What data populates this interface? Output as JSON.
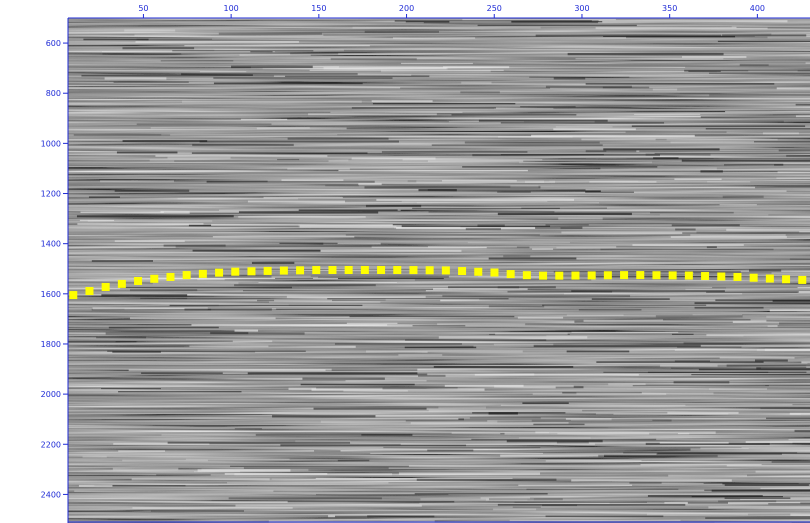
{
  "viewer": {
    "horizon_color": "#ffff00",
    "axis_color": "#1f2bd6",
    "background_color": "#7a7a7a"
  },
  "axes": {
    "x": {
      "ticks": [
        50,
        100,
        150,
        200,
        250,
        300,
        350,
        400
      ],
      "range": [
        7,
        430
      ]
    },
    "y": {
      "ticks": [
        600,
        800,
        1000,
        1200,
        1400,
        1600,
        1800,
        2000,
        2200,
        2400
      ],
      "range": [
        500,
        2510
      ]
    }
  },
  "horizon": {
    "icon": "dotted-horizon-pick",
    "points": [
      [
        10,
        1605
      ],
      [
        30,
        1570
      ],
      [
        50,
        1545
      ],
      [
        75,
        1525
      ],
      [
        100,
        1512
      ],
      [
        125,
        1508
      ],
      [
        150,
        1505
      ],
      [
        175,
        1505
      ],
      [
        200,
        1505
      ],
      [
        225,
        1507
      ],
      [
        250,
        1515
      ],
      [
        265,
        1525
      ],
      [
        280,
        1528
      ],
      [
        300,
        1527
      ],
      [
        330,
        1525
      ],
      [
        360,
        1527
      ],
      [
        390,
        1533
      ],
      [
        410,
        1540
      ],
      [
        430,
        1546
      ]
    ]
  }
}
